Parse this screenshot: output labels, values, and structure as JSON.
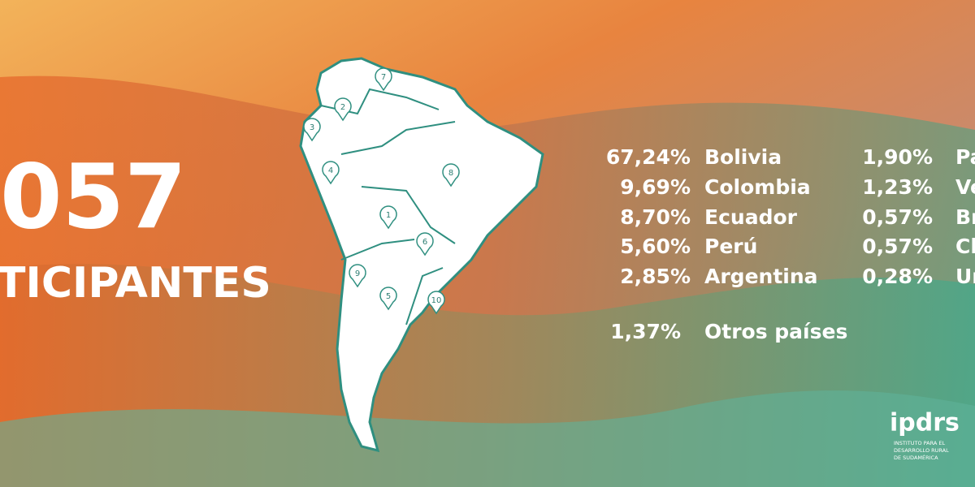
{
  "headline": {
    "number": "057",
    "label": "TICIPANTES"
  },
  "stats": {
    "left": [
      {
        "percent": "67,24%",
        "country": "Bolivia"
      },
      {
        "percent": "9,69%",
        "country": "Colombia"
      },
      {
        "percent": "8,70%",
        "country": "Ecuador"
      },
      {
        "percent": "5,60%",
        "country": "Perú"
      },
      {
        "percent": "2,85%",
        "country": "Argentina"
      }
    ],
    "right": [
      {
        "percent": "1,90%",
        "country": "Pa"
      },
      {
        "percent": "1,23%",
        "country": "Ve"
      },
      {
        "percent": "0,57%",
        "country": "Br"
      },
      {
        "percent": "0,57%",
        "country": "Ch"
      },
      {
        "percent": "0,28%",
        "country": "Ur"
      }
    ],
    "other": {
      "percent": "1,37%",
      "country": "Otros países"
    }
  },
  "map": {
    "markers": [
      "1",
      "2",
      "3",
      "4",
      "5",
      "6",
      "7",
      "8",
      "9",
      "10"
    ]
  },
  "logo": {
    "name": "ipdrs",
    "tagline": [
      "INSTITUTO PARA EL",
      "DESARROLLO RURAL",
      "DE SUDAMÉRICA"
    ]
  }
}
